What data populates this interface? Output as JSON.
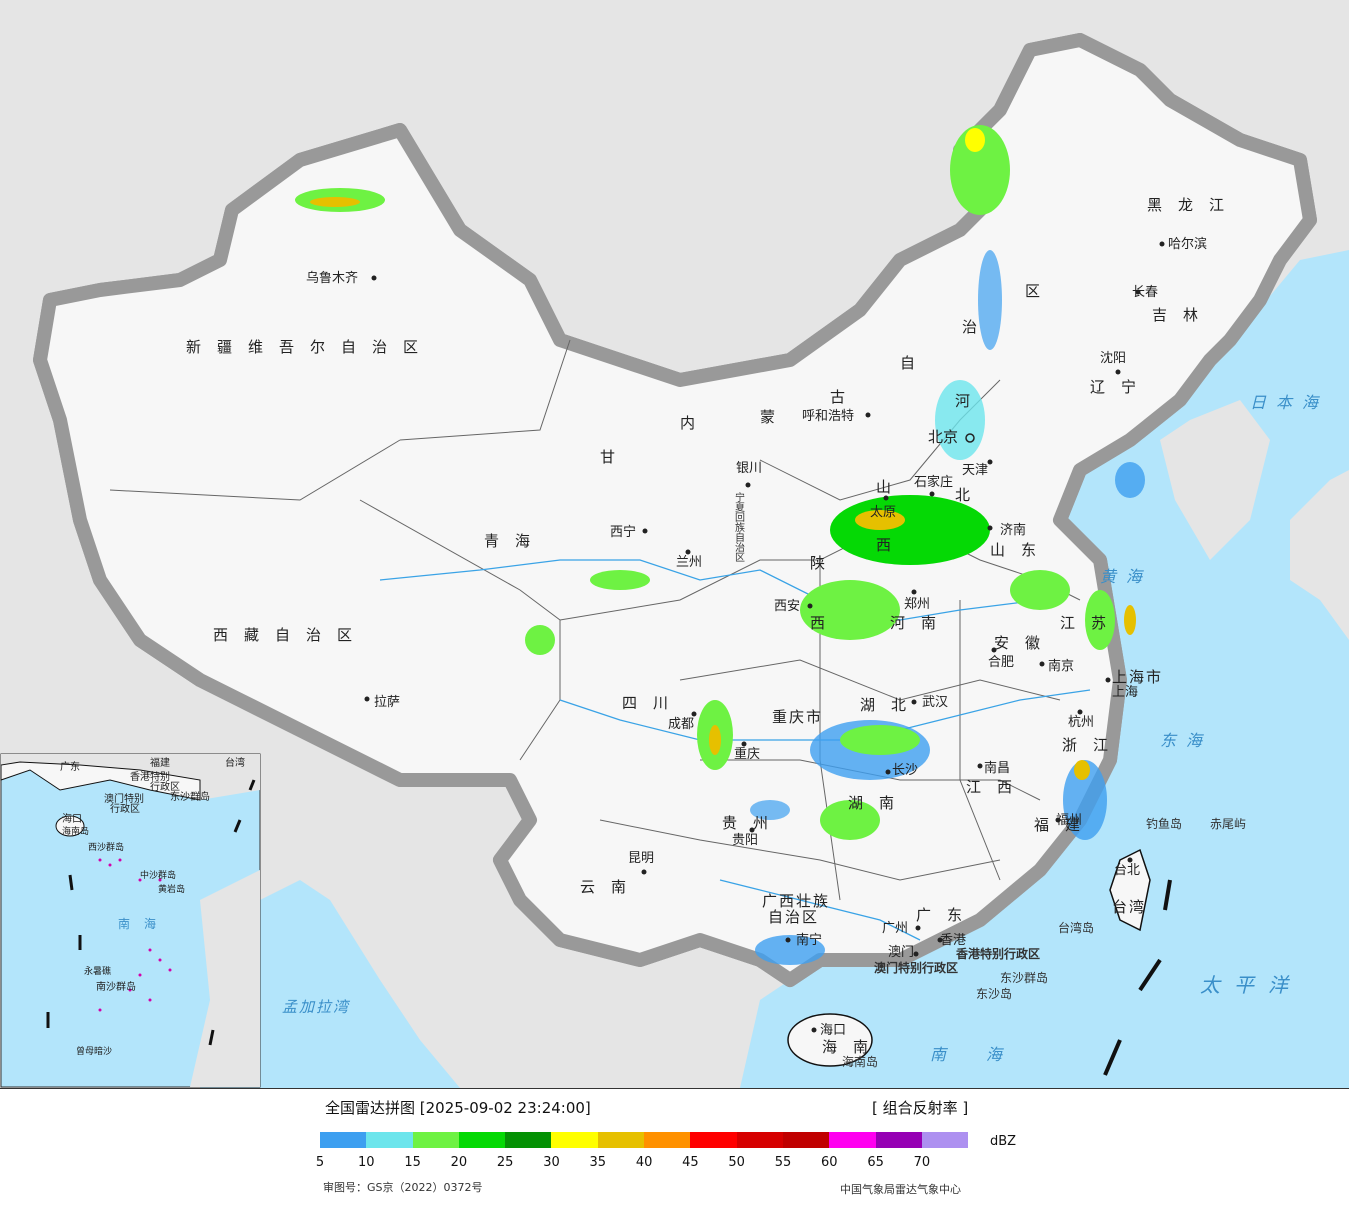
{
  "provinces": [
    {
      "name": "新疆维吾尔自治区"
    },
    {
      "name": "西藏自治区"
    },
    {
      "name": "青海"
    },
    {
      "name": "甘"
    },
    {
      "name": "内"
    },
    {
      "name": "蒙"
    },
    {
      "name": "古"
    },
    {
      "name": "自"
    },
    {
      "name": "治"
    },
    {
      "name": "区"
    },
    {
      "name": "黑龙江"
    },
    {
      "name": "吉林"
    },
    {
      "name": "辽宁"
    },
    {
      "name": "河"
    },
    {
      "name": "北"
    },
    {
      "name": "山东"
    },
    {
      "name": "山"
    },
    {
      "name": "西"
    },
    {
      "name": "陕"
    },
    {
      "name": "西"
    },
    {
      "name": "河南"
    },
    {
      "name": "江苏"
    },
    {
      "name": "安徽"
    },
    {
      "name": "上海市"
    },
    {
      "name": "浙江"
    },
    {
      "name": "湖北"
    },
    {
      "name": "湖南"
    },
    {
      "name": "江西"
    },
    {
      "name": "福建"
    },
    {
      "name": "四川"
    },
    {
      "name": "重庆市"
    },
    {
      "name": "贵州"
    },
    {
      "name": "云南"
    },
    {
      "name": "广西壮族"
    },
    {
      "name": "自治区"
    },
    {
      "name": "广东"
    },
    {
      "name": "海南"
    },
    {
      "name": "台湾"
    },
    {
      "name": "宁夏回族自治区"
    },
    {
      "name": "天津"
    },
    {
      "name": "北京"
    }
  ],
  "cities": [
    "乌鲁木齐",
    "拉萨",
    "西宁",
    "兰州",
    "银川",
    "呼和浩特",
    "北京",
    "天津",
    "石家庄",
    "太原",
    "济南",
    "西安",
    "郑州",
    "合肥",
    "南京",
    "上海",
    "杭州",
    "武汉",
    "成都",
    "重庆",
    "长沙",
    "南昌",
    "福州",
    "贵阳",
    "昆明",
    "南宁",
    "广州",
    "香港",
    "澳门",
    "海口",
    "台北",
    "哈尔滨",
    "长春",
    "沈阳",
    "宁夏回族自治区"
  ],
  "seas": {
    "japan": "日本海",
    "yellow": "黄海",
    "east": "东海",
    "south": "南海",
    "pacific": "太平洋",
    "bengal": "孟加拉湾"
  },
  "islands": {
    "diaoyu": "钓鱼岛",
    "chiwei": "赤尾屿",
    "taiwan_island": "台湾岛",
    "dongsha_group": "东沙群岛",
    "dongsha": "东沙岛",
    "hainan_island": "海南岛",
    "hk_region": "香港特别行政区",
    "macau_region": "澳门特别行政区"
  },
  "inset": {
    "labels": [
      "广东",
      "福建",
      "台湾",
      "香港特别",
      "行政区",
      "澳门特别",
      "行政区",
      "东沙群岛",
      "海口",
      "海南岛",
      "西沙群岛",
      "中沙群岛",
      "黄岩岛",
      "南海",
      "永暑礁",
      "南沙群岛",
      "曾母暗沙"
    ]
  },
  "legend": {
    "title": "全国雷达拼图 [2025-09-02 23:24:00]",
    "type": "[ 组合反射率 ]",
    "unit": "dBZ",
    "ticks": [
      "5",
      "10",
      "15",
      "20",
      "25",
      "30",
      "35",
      "40",
      "45",
      "50",
      "55",
      "60",
      "65",
      "70"
    ],
    "colors": [
      "#3d9ff0",
      "#6ce5ec",
      "#6ef243",
      "#05d905",
      "#049104",
      "#ffff00",
      "#e6c000",
      "#ff9100",
      "#ff0000",
      "#d60000",
      "#c00000",
      "#ff00f0",
      "#9600b4",
      "#ad90f0"
    ],
    "approval": "审图号：GS京（2022）0372号",
    "source": "中国气象局雷达气象中心"
  }
}
